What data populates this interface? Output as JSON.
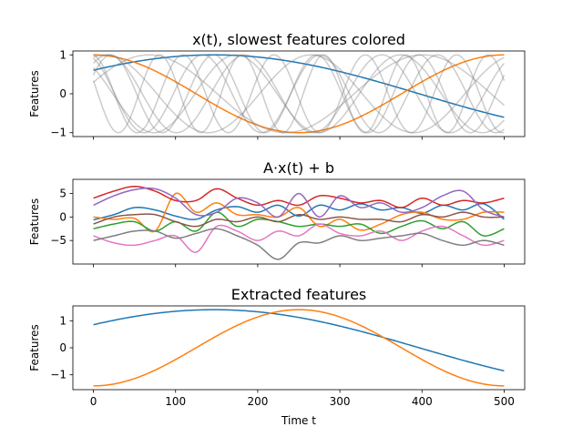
{
  "chart_data": [
    {
      "type": "line",
      "title": "x(t), slowest features colored",
      "ylabel": "Features",
      "xlabel": "",
      "xlim": [
        -25,
        525
      ],
      "ylim": [
        -1.1,
        1.1
      ],
      "xticks": [
        0,
        100,
        200,
        300,
        400,
        500
      ],
      "xtick_labels_visible": false,
      "yticks": [
        -1,
        0,
        1
      ],
      "ytick_labels": [
        "−1",
        "0",
        "1"
      ],
      "series": [
        {
          "color": "#1f77b4",
          "formula": "sin",
          "freq": 1,
          "phase": 0.65
        },
        {
          "color": "#ff7f0e",
          "formula": "sin",
          "freq": 2,
          "phase": 1.5708
        },
        {
          "color": "#808080",
          "alpha": 0.4,
          "formula": "sin",
          "freq": 3,
          "phase": 0.3
        },
        {
          "color": "#808080",
          "alpha": 0.4,
          "formula": "sin",
          "freq": 4,
          "phase": 1.2
        },
        {
          "color": "#808080",
          "alpha": 0.4,
          "formula": "sin",
          "freq": 5,
          "phase": 2.4
        },
        {
          "color": "#808080",
          "alpha": 0.4,
          "formula": "sin",
          "freq": 6,
          "phase": 0.9
        },
        {
          "color": "#808080",
          "alpha": 0.4,
          "formula": "sin",
          "freq": 7,
          "phase": 2.0
        },
        {
          "color": "#808080",
          "alpha": 0.4,
          "formula": "sin",
          "freq": 8,
          "phase": 0.5
        },
        {
          "color": "#808080",
          "alpha": 0.4,
          "formula": "sin",
          "freq": 9,
          "phase": 1.7
        },
        {
          "color": "#808080",
          "alpha": 0.4,
          "formula": "sin",
          "freq": 10,
          "phase": 2.8
        }
      ]
    },
    {
      "type": "line",
      "title": "A·x(t) + b",
      "ylabel": "Features",
      "xlabel": "",
      "xlim": [
        -25,
        525
      ],
      "ylim": [
        -10,
        8
      ],
      "xticks": [
        0,
        100,
        200,
        300,
        400,
        500
      ],
      "xtick_labels_visible": false,
      "yticks": [
        5,
        0,
        -5
      ],
      "ytick_labels": [
        "5",
        "0",
        "−5"
      ],
      "series": [
        {
          "color": "#1f77b4",
          "values": [
            -0.6,
            0.5,
            2.0,
            1.5,
            0.2,
            -0.5,
            1.5,
            2.2,
            1.0,
            2.5,
            0.2,
            2.5,
            1.5,
            2.8,
            1.5,
            2.0,
            0.8,
            2.5,
            1.5,
            2.8,
            -0.5
          ]
        },
        {
          "color": "#ff7f0e",
          "values": [
            0.0,
            -0.5,
            -0.3,
            -3.0,
            5.0,
            1.0,
            3.0,
            0.5,
            0.5,
            0.0,
            2.0,
            -2.0,
            -0.5,
            -2.8,
            -1.5,
            0.5,
            1.0,
            -0.5,
            -0.5,
            1.0,
            1.0
          ]
        },
        {
          "color": "#2ca02c",
          "values": [
            -2.5,
            -1.5,
            -1.0,
            -3.0,
            -1.0,
            -3.0,
            1.0,
            -2.0,
            -0.5,
            -1.0,
            -2.0,
            -1.5,
            -2.0,
            -1.5,
            -3.5,
            -2.0,
            -0.8,
            -2.5,
            -1.0,
            -4.0,
            -2.5
          ]
        },
        {
          "color": "#d62728",
          "values": [
            4.0,
            5.5,
            6.5,
            5.5,
            3.5,
            3.5,
            6.0,
            4.0,
            2.5,
            3.5,
            2.5,
            4.5,
            4.0,
            3.0,
            3.5,
            2.0,
            4.0,
            2.5,
            3.5,
            3.0,
            4.0
          ]
        },
        {
          "color": "#9467bd",
          "values": [
            2.5,
            4.5,
            5.8,
            6.0,
            4.0,
            0.5,
            1.0,
            4.0,
            3.0,
            0.0,
            5.0,
            0.0,
            4.5,
            2.0,
            3.0,
            1.0,
            2.0,
            4.5,
            5.5,
            1.5,
            0.0
          ]
        },
        {
          "color": "#8c564b",
          "values": [
            -1.5,
            0.0,
            0.5,
            0.5,
            -1.0,
            -2.0,
            -0.5,
            -1.0,
            0.0,
            -1.0,
            0.5,
            -0.5,
            0.0,
            -0.5,
            -0.5,
            -1.0,
            0.5,
            0.0,
            1.0,
            0.0,
            0.0
          ]
        },
        {
          "color": "#e377c2",
          "values": [
            -4.0,
            -5.5,
            -6.0,
            -5.0,
            -4.0,
            -7.5,
            -2.0,
            -3.0,
            -5.0,
            -3.0,
            -4.0,
            -1.5,
            -3.5,
            -4.0,
            -3.0,
            -5.0,
            -3.0,
            -2.0,
            -4.0,
            -6.0,
            -5.0
          ]
        },
        {
          "color": "#7f7f7f",
          "values": [
            -5.0,
            -4.0,
            -3.0,
            -3.0,
            -4.5,
            -3.5,
            -2.5,
            -4.0,
            -6.0,
            -9.0,
            -5.5,
            -5.5,
            -4.0,
            -5.0,
            -4.5,
            -4.0,
            -3.5,
            -5.0,
            -6.0,
            -5.0,
            -6.0
          ]
        }
      ]
    },
    {
      "type": "line",
      "title": "Extracted features",
      "ylabel": "Features",
      "xlabel": "Time t",
      "xlim": [
        -25,
        525
      ],
      "ylim": [
        -1.55,
        1.55
      ],
      "xticks": [
        0,
        100,
        200,
        300,
        400,
        500
      ],
      "xtick_labels": [
        "0",
        "100",
        "200",
        "300",
        "400",
        "500"
      ],
      "xtick_labels_visible": true,
      "yticks": [
        1,
        0,
        -1
      ],
      "ytick_labels": [
        "1",
        "0",
        "−1"
      ],
      "series": [
        {
          "color": "#1f77b4",
          "formula": "sin",
          "amp": 1.41,
          "freq": 1,
          "phase": 0.65
        },
        {
          "color": "#ff7f0e",
          "formula": "sin",
          "amp": 1.41,
          "freq": 2,
          "phase": -1.5708
        }
      ]
    }
  ]
}
